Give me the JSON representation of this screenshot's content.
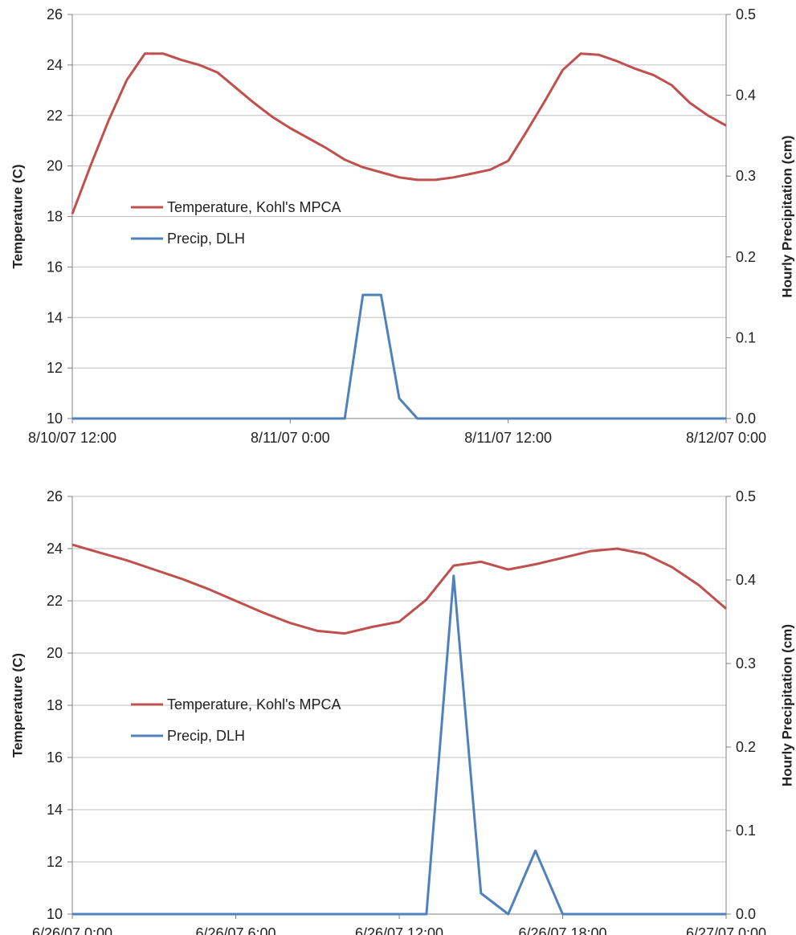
{
  "chart_data": [
    {
      "type": "line",
      "x_range": [
        "2007-08-10T12:00",
        "2007-08-12T00:00"
      ],
      "x_ticks": [
        {
          "x": "2007-08-10T12:00",
          "label": "8/10/07 12:00"
        },
        {
          "x": "2007-08-11T00:00",
          "label": "8/11/07 0:00"
        },
        {
          "x": "2007-08-11T12:00",
          "label": "8/11/07 12:00"
        },
        {
          "x": "2007-08-12T00:00",
          "label": "8/12/07 0:00"
        }
      ],
      "y_left": {
        "label": "Temperature (C)",
        "range": [
          10,
          26
        ],
        "ticks": [
          "10",
          "12",
          "14",
          "16",
          "18",
          "20",
          "22",
          "24",
          "26"
        ]
      },
      "y_right": {
        "label": "Hourly Precipitation (cm)",
        "range": [
          0,
          0.5
        ],
        "ticks": [
          "0.0",
          "0.1",
          "0.2",
          "0.3",
          "0.4",
          "0.5"
        ]
      },
      "grid": true,
      "legend_position": "middle-left",
      "series": [
        {
          "name": "Temperature, Kohl's MPCA",
          "axis": "left",
          "color": "#c0504d",
          "points": [
            [
              "2007-08-10T12:00",
              18.1
            ],
            [
              "2007-08-10T13:00",
              20.0
            ],
            [
              "2007-08-10T14:00",
              21.8
            ],
            [
              "2007-08-10T15:00",
              23.4
            ],
            [
              "2007-08-10T16:00",
              24.45
            ],
            [
              "2007-08-10T17:00",
              24.45
            ],
            [
              "2007-08-10T18:00",
              24.2
            ],
            [
              "2007-08-10T19:00",
              24.0
            ],
            [
              "2007-08-10T20:00",
              23.7
            ],
            [
              "2007-08-10T21:00",
              23.1
            ],
            [
              "2007-08-10T22:00",
              22.5
            ],
            [
              "2007-08-10T23:00",
              21.95
            ],
            [
              "2007-08-11T00:00",
              21.5
            ],
            [
              "2007-08-11T01:00",
              21.1
            ],
            [
              "2007-08-11T02:00",
              20.7
            ],
            [
              "2007-08-11T03:00",
              20.25
            ],
            [
              "2007-08-11T04:00",
              19.95
            ],
            [
              "2007-08-11T05:00",
              19.75
            ],
            [
              "2007-08-11T06:00",
              19.55
            ],
            [
              "2007-08-11T07:00",
              19.45
            ],
            [
              "2007-08-11T08:00",
              19.45
            ],
            [
              "2007-08-11T09:00",
              19.55
            ],
            [
              "2007-08-11T10:00",
              19.7
            ],
            [
              "2007-08-11T11:00",
              19.85
            ],
            [
              "2007-08-11T12:00",
              20.2
            ],
            [
              "2007-08-11T13:00",
              21.35
            ],
            [
              "2007-08-11T14:00",
              22.55
            ],
            [
              "2007-08-11T15:00",
              23.8
            ],
            [
              "2007-08-11T16:00",
              24.45
            ],
            [
              "2007-08-11T17:00",
              24.4
            ],
            [
              "2007-08-11T18:00",
              24.15
            ],
            [
              "2007-08-11T19:00",
              23.85
            ],
            [
              "2007-08-11T20:00",
              23.6
            ],
            [
              "2007-08-11T21:00",
              23.2
            ],
            [
              "2007-08-11T22:00",
              22.5
            ],
            [
              "2007-08-11T23:00",
              22.0
            ],
            [
              "2007-08-12T00:00",
              21.6
            ]
          ]
        },
        {
          "name": "Precip, DLH",
          "axis": "right",
          "color": "#4f81bd",
          "points": [
            [
              "2007-08-10T12:00",
              0.0
            ],
            [
              "2007-08-11T03:00",
              0.0
            ],
            [
              "2007-08-11T04:00",
              0.153
            ],
            [
              "2007-08-11T05:00",
              0.153
            ],
            [
              "2007-08-11T06:00",
              0.025
            ],
            [
              "2007-08-11T07:00",
              0.0
            ],
            [
              "2007-08-12T00:00",
              0.0
            ]
          ]
        }
      ]
    },
    {
      "type": "line",
      "x_range": [
        "2007-06-26T00:00",
        "2007-06-27T00:00"
      ],
      "x_ticks": [
        {
          "x": "2007-06-26T00:00",
          "label": "6/26/07 0:00"
        },
        {
          "x": "2007-06-26T06:00",
          "label": "6/26/07 6:00"
        },
        {
          "x": "2007-06-26T12:00",
          "label": "6/26/07 12:00"
        },
        {
          "x": "2007-06-26T18:00",
          "label": "6/26/07 18:00"
        },
        {
          "x": "2007-06-27T00:00",
          "label": "6/27/07 0:00"
        }
      ],
      "y_left": {
        "label": "Temperature (C)",
        "range": [
          10,
          26
        ],
        "ticks": [
          "10",
          "12",
          "14",
          "16",
          "18",
          "20",
          "22",
          "24",
          "26"
        ]
      },
      "y_right": {
        "label": "Hourly Precipitation (cm)",
        "range": [
          0,
          0.5
        ],
        "ticks": [
          "0.0",
          "0.1",
          "0.2",
          "0.3",
          "0.4",
          "0.5"
        ]
      },
      "grid": true,
      "legend_position": "middle-left",
      "series": [
        {
          "name": "Temperature, Kohl's MPCA",
          "axis": "left",
          "color": "#c0504d",
          "points": [
            [
              "2007-06-26T00:00",
              24.15
            ],
            [
              "2007-06-26T01:00",
              23.85
            ],
            [
              "2007-06-26T02:00",
              23.55
            ],
            [
              "2007-06-26T03:00",
              23.2
            ],
            [
              "2007-06-26T04:00",
              22.85
            ],
            [
              "2007-06-26T05:00",
              22.45
            ],
            [
              "2007-06-26T06:00",
              22.0
            ],
            [
              "2007-06-26T07:00",
              21.55
            ],
            [
              "2007-06-26T08:00",
              21.15
            ],
            [
              "2007-06-26T09:00",
              20.85
            ],
            [
              "2007-06-26T10:00",
              20.75
            ],
            [
              "2007-06-26T11:00",
              21.0
            ],
            [
              "2007-06-26T12:00",
              21.2
            ],
            [
              "2007-06-26T13:00",
              22.05
            ],
            [
              "2007-06-26T14:00",
              23.35
            ],
            [
              "2007-06-26T15:00",
              23.5
            ],
            [
              "2007-06-26T16:00",
              23.2
            ],
            [
              "2007-06-26T17:00",
              23.4
            ],
            [
              "2007-06-26T18:00",
              23.65
            ],
            [
              "2007-06-26T19:00",
              23.9
            ],
            [
              "2007-06-26T20:00",
              24.0
            ],
            [
              "2007-06-26T21:00",
              23.8
            ],
            [
              "2007-06-26T22:00",
              23.3
            ],
            [
              "2007-06-26T23:00",
              22.6
            ],
            [
              "2007-06-27T00:00",
              21.7
            ]
          ]
        },
        {
          "name": "Precip, DLH",
          "axis": "right",
          "color": "#4f81bd",
          "points": [
            [
              "2007-06-26T00:00",
              0.0
            ],
            [
              "2007-06-26T13:00",
              0.0
            ],
            [
              "2007-06-26T14:00",
              0.405
            ],
            [
              "2007-06-26T15:00",
              0.025
            ],
            [
              "2007-06-26T16:00",
              0.0
            ],
            [
              "2007-06-26T17:00",
              0.076
            ],
            [
              "2007-06-26T18:00",
              0.0
            ],
            [
              "2007-06-27T00:00",
              0.0
            ]
          ]
        }
      ]
    }
  ]
}
